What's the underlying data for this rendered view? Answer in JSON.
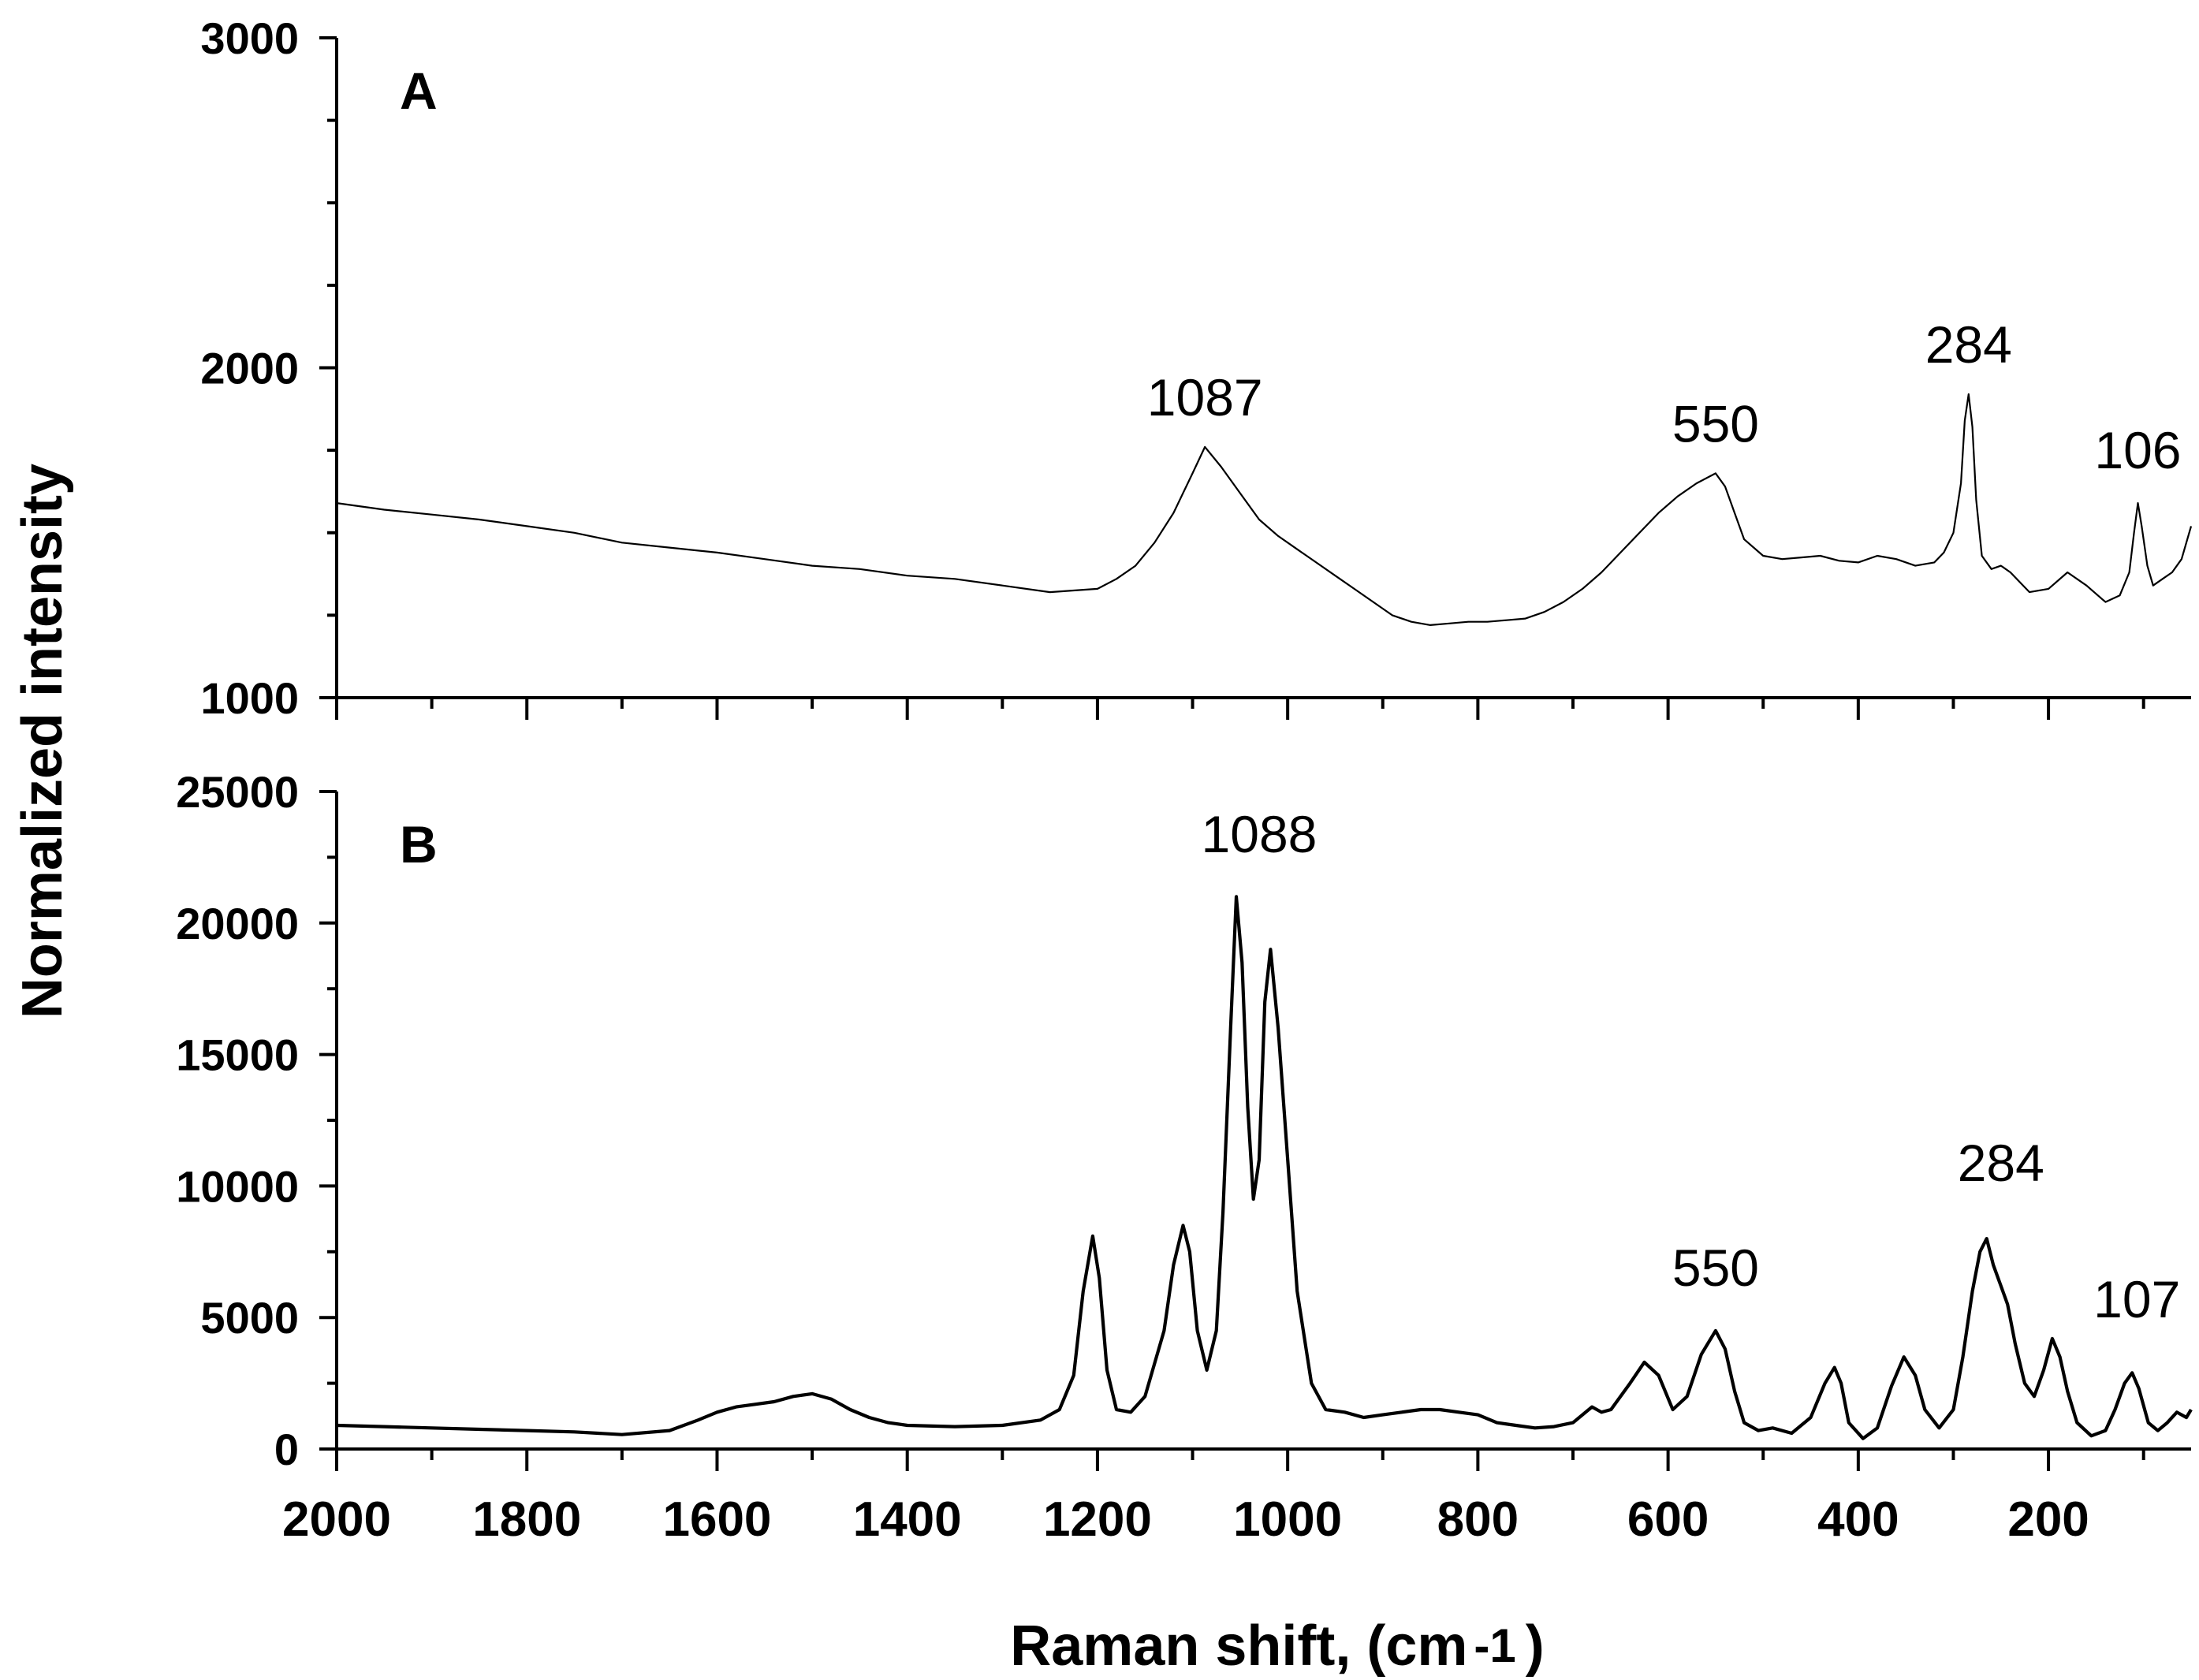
{
  "figure": {
    "xlabel": "Raman shift, (cm",
    "xlabel_superscript": "-1",
    "xlabel_close": ")",
    "ylabel": "Normalized intensity"
  },
  "chart_data": [
    {
      "type": "line",
      "panel_label": "A",
      "xlim": [
        2000,
        50
      ],
      "ylim": [
        1000,
        3000
      ],
      "x_reversed": true,
      "y_ticks_major": [
        1000,
        2000,
        3000
      ],
      "y_tick_labels": [
        "1000",
        "2000",
        "3000"
      ],
      "x_ticks_major": [
        2000,
        1800,
        1600,
        1400,
        1200,
        1000,
        800,
        600,
        400,
        200
      ],
      "grid": false,
      "annotations": [
        {
          "text": "1087",
          "x": 1087,
          "y": 1760
        },
        {
          "text": "550",
          "x": 550,
          "y": 1680
        },
        {
          "text": "284",
          "x": 284,
          "y": 1920
        },
        {
          "text": "106",
          "x": 106,
          "y": 1600
        }
      ],
      "series": [
        {
          "x": [
            2000,
            1950,
            1900,
            1850,
            1800,
            1750,
            1700,
            1650,
            1600,
            1550,
            1500,
            1450,
            1400,
            1350,
            1300,
            1250,
            1200,
            1180,
            1160,
            1140,
            1120,
            1100,
            1087,
            1070,
            1050,
            1030,
            1010,
            990,
            970,
            950,
            930,
            910,
            890,
            870,
            850,
            830,
            810,
            790,
            770,
            750,
            730,
            710,
            690,
            670,
            650,
            630,
            610,
            590,
            570,
            550,
            540,
            530,
            520,
            500,
            480,
            460,
            440,
            420,
            400,
            380,
            360,
            340,
            320,
            310,
            300,
            292,
            288,
            284,
            280,
            276,
            270,
            260,
            250,
            240,
            220,
            200,
            180,
            160,
            140,
            125,
            115,
            110,
            106,
            102,
            96,
            90,
            80,
            70,
            60,
            50
          ],
          "y": [
            1590,
            1570,
            1555,
            1540,
            1520,
            1500,
            1470,
            1455,
            1440,
            1420,
            1400,
            1390,
            1370,
            1360,
            1340,
            1320,
            1330,
            1360,
            1400,
            1470,
            1560,
            1680,
            1760,
            1700,
            1620,
            1540,
            1490,
            1450,
            1410,
            1370,
            1330,
            1290,
            1250,
            1230,
            1220,
            1225,
            1230,
            1230,
            1235,
            1240,
            1260,
            1290,
            1330,
            1380,
            1440,
            1500,
            1560,
            1610,
            1650,
            1680,
            1640,
            1560,
            1480,
            1430,
            1420,
            1425,
            1430,
            1415,
            1410,
            1430,
            1420,
            1400,
            1410,
            1440,
            1500,
            1650,
            1840,
            1920,
            1820,
            1600,
            1430,
            1390,
            1400,
            1380,
            1320,
            1330,
            1380,
            1340,
            1290,
            1310,
            1380,
            1500,
            1590,
            1520,
            1400,
            1340,
            1360,
            1380,
            1420,
            1520
          ]
        }
      ]
    },
    {
      "type": "line",
      "panel_label": "B",
      "xlim": [
        2000,
        50
      ],
      "ylim": [
        0,
        25000
      ],
      "x_reversed": true,
      "y_ticks_major": [
        0,
        5000,
        10000,
        15000,
        20000,
        25000
      ],
      "y_tick_labels": [
        "0",
        "5000",
        "10000",
        "15000",
        "20000",
        "25000"
      ],
      "x_ticks_major": [
        2000,
        1800,
        1600,
        1400,
        1200,
        1000,
        800,
        600,
        400,
        200
      ],
      "x_tick_labels": [
        "2000",
        "1800",
        "1600",
        "1400",
        "1200",
        "1000",
        "800",
        "600",
        "400",
        "200"
      ],
      "grid": false,
      "annotations": [
        {
          "text": "1088",
          "x": 1030,
          "y": 21500
        },
        {
          "text": "550",
          "x": 550,
          "y": 5000
        },
        {
          "text": "284",
          "x": 250,
          "y": 9000
        },
        {
          "text": "107",
          "x": 107,
          "y": 3800
        }
      ],
      "series": [
        {
          "x": [
            2000,
            1950,
            1900,
            1850,
            1800,
            1750,
            1700,
            1650,
            1620,
            1600,
            1580,
            1560,
            1540,
            1520,
            1500,
            1480,
            1460,
            1440,
            1420,
            1400,
            1350,
            1300,
            1260,
            1240,
            1225,
            1215,
            1205,
            1198,
            1190,
            1180,
            1165,
            1150,
            1130,
            1120,
            1110,
            1103,
            1095,
            1085,
            1075,
            1068,
            1060,
            1054,
            1048,
            1042,
            1036,
            1030,
            1024,
            1018,
            1010,
            1000,
            990,
            975,
            960,
            940,
            920,
            900,
            880,
            860,
            840,
            820,
            800,
            780,
            760,
            740,
            720,
            700,
            680,
            670,
            660,
            640,
            625,
            610,
            595,
            580,
            565,
            550,
            540,
            530,
            520,
            505,
            490,
            470,
            450,
            435,
            425,
            418,
            410,
            395,
            380,
            365,
            352,
            340,
            330,
            315,
            300,
            290,
            280,
            272,
            265,
            258,
            250,
            243,
            235,
            225,
            215,
            205,
            196,
            188,
            180,
            170,
            155,
            140,
            130,
            120,
            112,
            105,
            95,
            85,
            75,
            65,
            55,
            50
          ],
          "y": [
            900,
            850,
            800,
            750,
            700,
            650,
            550,
            700,
            1100,
            1400,
            1600,
            1700,
            1800,
            2000,
            2100,
            1900,
            1500,
            1200,
            1000,
            900,
            850,
            900,
            1100,
            1500,
            2800,
            6000,
            8100,
            6500,
            3000,
            1500,
            1400,
            2000,
            4500,
            7000,
            8500,
            7500,
            4500,
            3000,
            4500,
            9000,
            16000,
            21000,
            18500,
            13000,
            9500,
            11000,
            17000,
            19000,
            16000,
            11000,
            6000,
            2500,
            1500,
            1400,
            1200,
            1300,
            1400,
            1500,
            1500,
            1400,
            1300,
            1000,
            900,
            800,
            850,
            1000,
            1600,
            1400,
            1500,
            2500,
            3300,
            2800,
            1500,
            2000,
            3600,
            4500,
            3800,
            2200,
            1000,
            700,
            800,
            600,
            1200,
            2500,
            3100,
            2500,
            1000,
            400,
            800,
            2400,
            3500,
            2800,
            1500,
            800,
            1500,
            3500,
            6000,
            7500,
            8000,
            7000,
            6200,
            5500,
            4000,
            2500,
            2000,
            3000,
            4200,
            3500,
            2200,
            1000,
            500,
            700,
            1500,
            2500,
            2900,
            2300,
            1000,
            700,
            1000,
            1400,
            1200,
            1500
          ]
        }
      ]
    }
  ]
}
